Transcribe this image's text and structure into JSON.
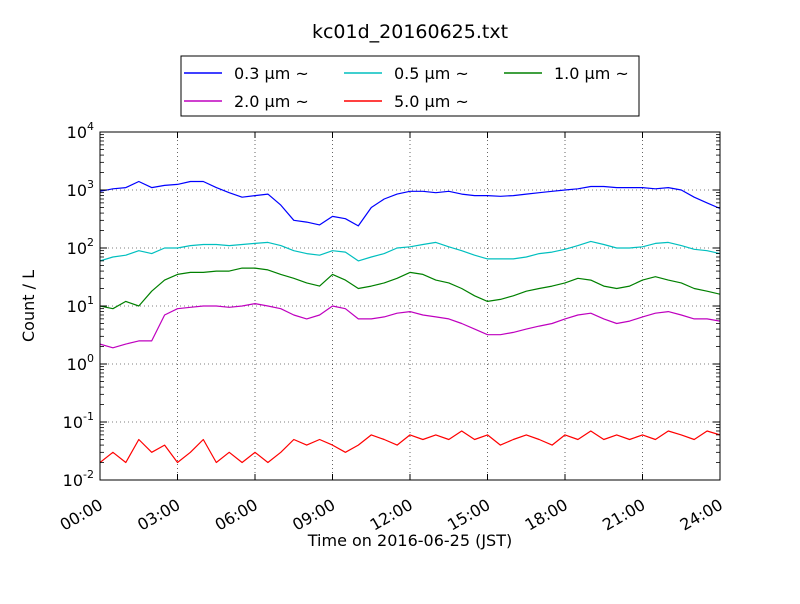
{
  "chart_data": {
    "type": "line",
    "title": "kc01d_20160625.txt",
    "xlabel": "Time on 2016-06-25 (JST)",
    "ylabel": "Count / L",
    "xlim": [
      "00:00",
      "24:00"
    ],
    "x_unit": "hours",
    "ylim": [
      0.01,
      10000
    ],
    "y_scale": "log",
    "grid": true,
    "legend_position": "top-center",
    "x_ticks": [
      "00:00",
      "03:00",
      "06:00",
      "09:00",
      "12:00",
      "15:00",
      "18:00",
      "21:00",
      "24:00"
    ],
    "y_ticks": [
      {
        "value": 0.01,
        "base": "10",
        "exp": "-2"
      },
      {
        "value": 0.1,
        "base": "10",
        "exp": "-1"
      },
      {
        "value": 1,
        "base": "10",
        "exp": "0"
      },
      {
        "value": 10,
        "base": "10",
        "exp": "1"
      },
      {
        "value": 100,
        "base": "10",
        "exp": "2"
      },
      {
        "value": 1000,
        "base": "10",
        "exp": "3"
      },
      {
        "value": 10000,
        "base": "10",
        "exp": "4"
      }
    ],
    "x": [
      0,
      0.5,
      1,
      1.5,
      2,
      2.5,
      3,
      3.5,
      4,
      4.5,
      5,
      5.5,
      6,
      6.5,
      7,
      7.5,
      8,
      8.5,
      9,
      9.5,
      10,
      10.5,
      11,
      11.5,
      12,
      12.5,
      13,
      13.5,
      14,
      14.5,
      15,
      15.5,
      16,
      16.5,
      17,
      17.5,
      18,
      18.5,
      19,
      19.5,
      20,
      20.5,
      21,
      21.5,
      22,
      22.5,
      23,
      23.5,
      24
    ],
    "series": [
      {
        "name": "0.3 μm ~",
        "color": "#0000ff",
        "values": [
          950,
          1050,
          1100,
          1400,
          1100,
          1200,
          1250,
          1400,
          1400,
          1100,
          900,
          750,
          800,
          850,
          550,
          300,
          280,
          250,
          350,
          320,
          240,
          500,
          700,
          850,
          950,
          950,
          900,
          950,
          850,
          800,
          800,
          780,
          800,
          850,
          900,
          950,
          1000,
          1050,
          1150,
          1150,
          1100,
          1100,
          1100,
          1050,
          1100,
          1000,
          750,
          600,
          480
        ]
      },
      {
        "name": "0.5 μm ~",
        "color": "#00bfbf",
        "values": [
          60,
          70,
          75,
          90,
          80,
          100,
          100,
          110,
          115,
          115,
          110,
          115,
          120,
          125,
          110,
          90,
          80,
          75,
          90,
          85,
          60,
          70,
          80,
          100,
          105,
          115,
          125,
          105,
          90,
          75,
          65,
          65,
          65,
          70,
          80,
          85,
          95,
          110,
          130,
          115,
          100,
          100,
          105,
          120,
          125,
          110,
          95,
          90,
          80
        ]
      },
      {
        "name": "1.0 μm ~",
        "color": "#008000",
        "values": [
          10,
          9,
          12,
          10,
          18,
          28,
          35,
          38,
          38,
          40,
          40,
          45,
          45,
          42,
          35,
          30,
          25,
          22,
          35,
          28,
          20,
          22,
          25,
          30,
          38,
          35,
          28,
          25,
          20,
          15,
          12,
          13,
          15,
          18,
          20,
          22,
          25,
          30,
          28,
          22,
          20,
          22,
          28,
          32,
          28,
          25,
          20,
          18,
          16
        ]
      },
      {
        "name": "2.0 μm ~",
        "color": "#bf00bf",
        "values": [
          2.2,
          1.9,
          2.2,
          2.5,
          2.5,
          7,
          9,
          9.5,
          10,
          10,
          9.5,
          10,
          11,
          10,
          9,
          7,
          6,
          7,
          10,
          9,
          6,
          6,
          6.5,
          7.5,
          8,
          7,
          6.5,
          6,
          5,
          4,
          3.2,
          3.2,
          3.5,
          4,
          4.5,
          5,
          6,
          7,
          7.5,
          6,
          5,
          5.5,
          6.5,
          7.5,
          8,
          7,
          6,
          6,
          5.5
        ]
      },
      {
        "name": "5.0 μm ~",
        "color": "#ff0000",
        "values": [
          0.02,
          0.03,
          0.02,
          0.05,
          0.03,
          0.04,
          0.02,
          0.03,
          0.05,
          0.02,
          0.03,
          0.02,
          0.03,
          0.02,
          0.03,
          0.05,
          0.04,
          0.05,
          0.04,
          0.03,
          0.04,
          0.06,
          0.05,
          0.04,
          0.06,
          0.05,
          0.06,
          0.05,
          0.07,
          0.05,
          0.06,
          0.04,
          0.05,
          0.06,
          0.05,
          0.04,
          0.06,
          0.05,
          0.07,
          0.05,
          0.06,
          0.05,
          0.06,
          0.05,
          0.07,
          0.06,
          0.05,
          0.07,
          0.06
        ]
      }
    ]
  }
}
